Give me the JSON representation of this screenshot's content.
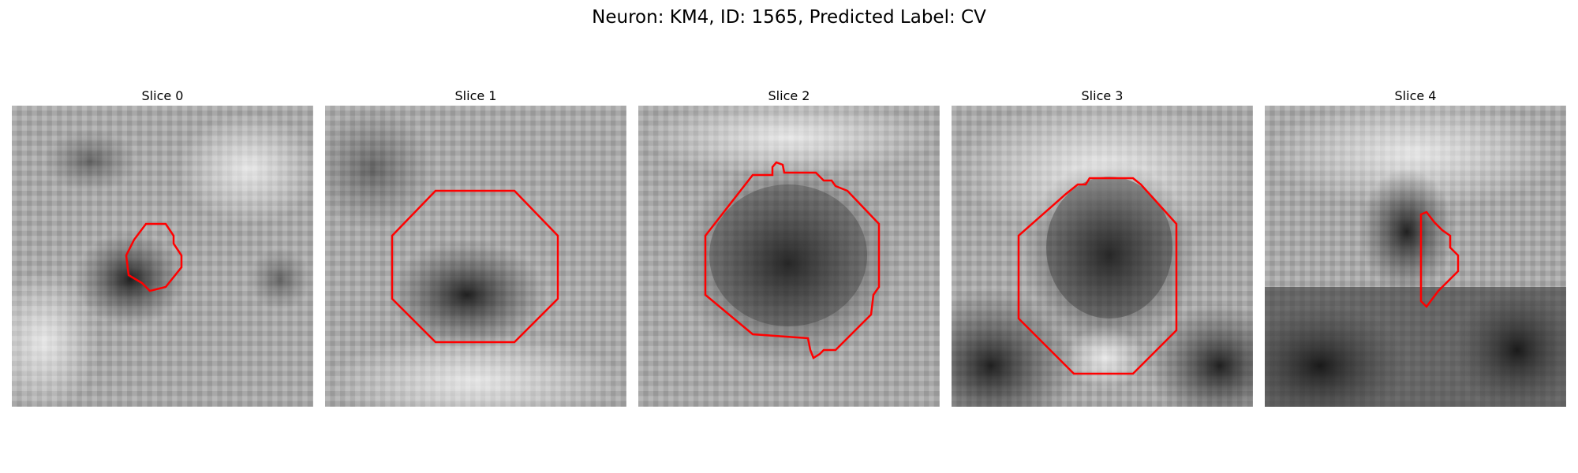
{
  "figure": {
    "title": "Neuron: KM4, ID: 1565, Predicted Label: CV",
    "contour_color": "#ff0000",
    "panels": [
      {
        "title": "Slice 0",
        "dark_blob": "small dark spot center-left",
        "contour_shape": "small polygon"
      },
      {
        "title": "Slice 1",
        "dark_blob": "dark region lower center",
        "contour_shape": "octagon"
      },
      {
        "title": "Slice 2",
        "dark_blob": "large dark region center",
        "contour_shape": "octagon with notches"
      },
      {
        "title": "Slice 3",
        "dark_blob": "dark region center, dark lower-left and lower-right",
        "contour_shape": "octagon"
      },
      {
        "title": "Slice 4",
        "dark_blob": "narrow dark region center, dark lower half",
        "contour_shape": "narrow polygon"
      }
    ]
  }
}
